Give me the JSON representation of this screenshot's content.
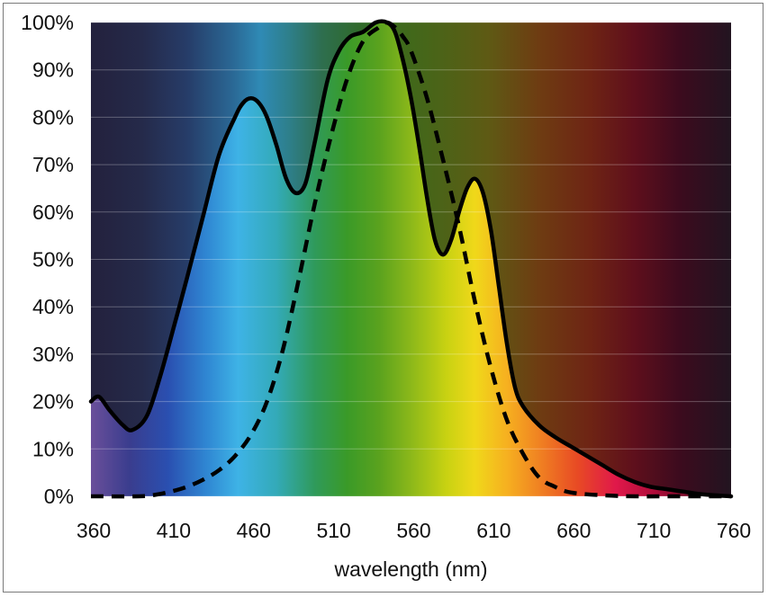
{
  "chart_data": {
    "type": "line",
    "title": "",
    "xlabel": "wavelength (nm)",
    "ylabel": "",
    "xlim": [
      360,
      760
    ],
    "ylim": [
      0,
      100
    ],
    "x_ticks": [
      "360",
      "410",
      "460",
      "510",
      "560",
      "610",
      "660",
      "710",
      "760"
    ],
    "y_ticks": [
      "0%",
      "10%",
      "20%",
      "30%",
      "40%",
      "50%",
      "60%",
      "70%",
      "80%",
      "90%",
      "100%"
    ],
    "grid": true,
    "legend": "none",
    "background": "visible-spectrum gradient",
    "series": [
      {
        "style": "solid",
        "color": "#000000",
        "x": [
          360,
          365,
          372,
          380,
          386,
          395,
          403,
          412,
          420,
          430,
          440,
          450,
          455,
          460,
          465,
          470,
          476,
          482,
          488,
          494,
          500,
          508,
          515,
          522,
          530,
          538,
          545,
          550,
          555,
          560,
          565,
          570,
          575,
          580,
          585,
          590,
          595,
          600,
          605,
          610,
          615,
          620,
          625,
          630,
          640,
          650,
          660,
          670,
          680,
          690,
          700,
          710,
          720,
          730,
          740,
          750,
          760
        ],
        "y": [
          20,
          21,
          18,
          15,
          14,
          17,
          25,
          36,
          46,
          59,
          72,
          80,
          83,
          84,
          83,
          80,
          74,
          67,
          64,
          66,
          75,
          88,
          94,
          97,
          98,
          100,
          100,
          98,
          92,
          84,
          74,
          63,
          54,
          51,
          54,
          60,
          65,
          67,
          64,
          56,
          44,
          32,
          23,
          19,
          15,
          12.5,
          10.5,
          8.5,
          6.5,
          4.5,
          3,
          2,
          1.5,
          1,
          0.5,
          0.2,
          0
        ]
      },
      {
        "style": "dashed",
        "color": "#000000",
        "x": [
          360,
          390,
          400,
          410,
          420,
          430,
          440,
          450,
          460,
          470,
          480,
          490,
          500,
          510,
          520,
          530,
          540,
          545,
          550,
          555,
          560,
          570,
          580,
          590,
          600,
          610,
          620,
          630,
          640,
          650,
          660,
          680,
          700,
          720,
          740,
          760
        ],
        "y": [
          0,
          0,
          0.3,
          1,
          2,
          3.5,
          5.5,
          8.5,
          13,
          20,
          31,
          46,
          62,
          76,
          88,
          96,
          99,
          100,
          99,
          97,
          94,
          84,
          71,
          57,
          41,
          27,
          16,
          9,
          4,
          2,
          0.8,
          0.2,
          0,
          0,
          0,
          0
        ]
      }
    ]
  }
}
